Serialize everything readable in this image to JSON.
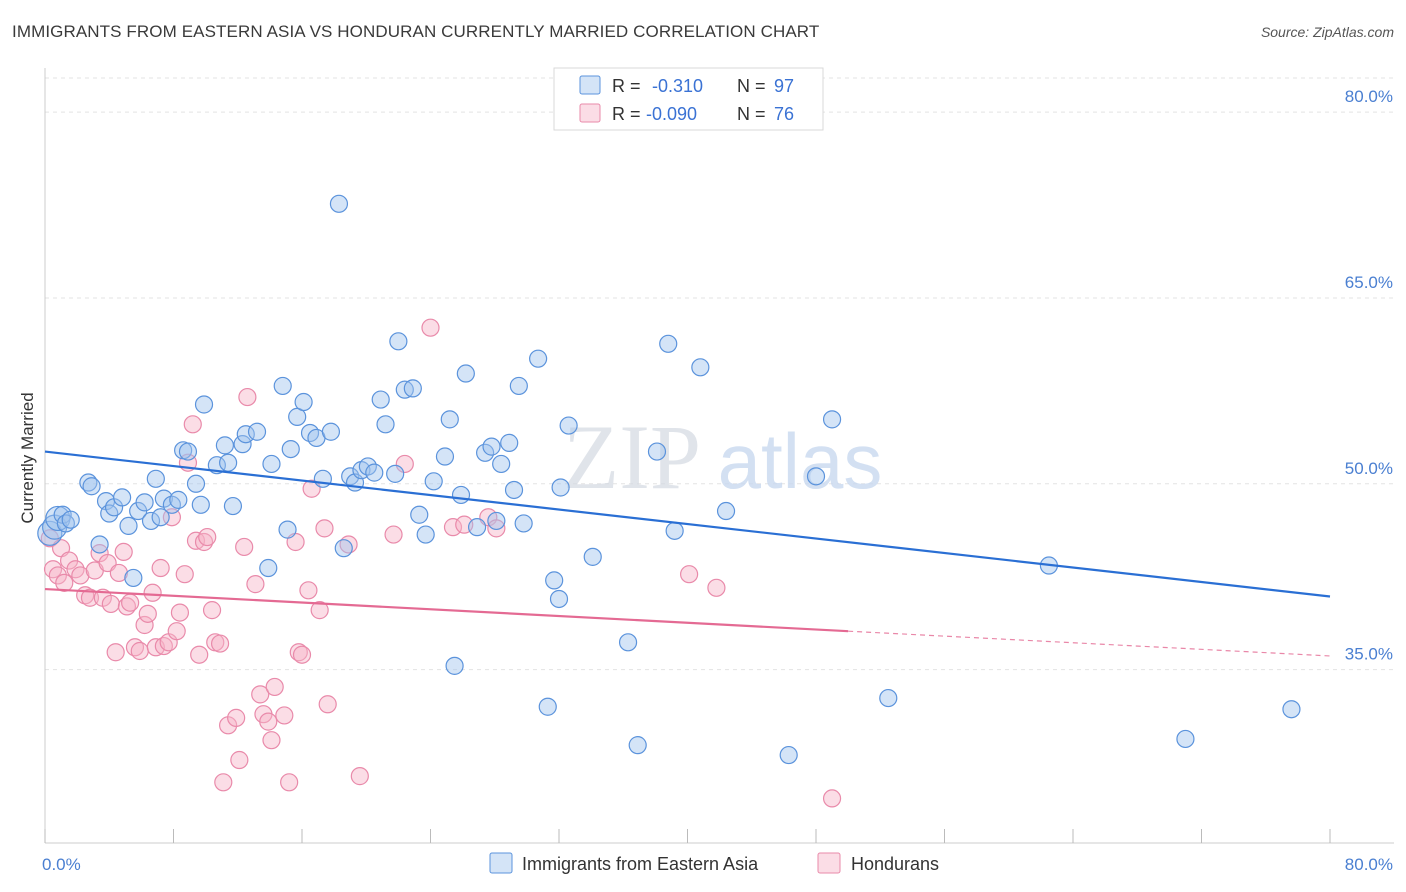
{
  "title": "IMMIGRANTS FROM EASTERN ASIA VS HONDURAN CURRENTLY MARRIED CORRELATION CHART",
  "source": "Source: ZipAtlas.com",
  "watermark": {
    "zip": "ZIP",
    "atlas": "atlas"
  },
  "colors": {
    "blue": "#5b93dc",
    "blue_fill": "rgba(160,195,238,0.45)",
    "blue_line": "#2a6fd4",
    "pink": "#e98aaa",
    "pink_fill": "rgba(246,180,200,0.45)",
    "pink_line": "#e46a93"
  },
  "legend": {
    "rows": [
      {
        "r_label": "R =",
        "r_value": "-0.310",
        "n_label": "N =",
        "n_value": "97"
      },
      {
        "r_label": "R =",
        "r_value": "-0.090",
        "n_label": "N =",
        "n_value": "76"
      }
    ]
  },
  "bottom_legend": [
    "Immigrants from Eastern Asia",
    "Hondurans"
  ],
  "chart_data": {
    "type": "scatter",
    "title": "IMMIGRANTS FROM EASTERN ASIA VS HONDURAN CURRENTLY MARRIED CORRELATION CHART",
    "xlabel": "",
    "ylabel": "Currently Married",
    "xlim": [
      0,
      80
    ],
    "ylim": [
      21,
      83
    ],
    "x_tick_labels": [
      "0.0%",
      "80.0%"
    ],
    "y_ticks": [
      35,
      50,
      65,
      80
    ],
    "y_tick_labels": [
      "35.0%",
      "50.0%",
      "65.0%",
      "80.0%"
    ],
    "grid": true,
    "legend_position": "top-center",
    "series": [
      {
        "name": "Immigrants from Eastern Asia",
        "trend": {
          "x": [
            0,
            80
          ],
          "y": [
            52.6,
            40.9
          ],
          "dashed_after": null
        },
        "points": [
          [
            0.3,
            46.0
          ],
          [
            0.6,
            46.5
          ],
          [
            0.8,
            47.2
          ],
          [
            1.1,
            47.5
          ],
          [
            1.3,
            46.8
          ],
          [
            1.6,
            47.1
          ],
          [
            2.7,
            50.1
          ],
          [
            2.9,
            49.8
          ],
          [
            3.4,
            45.1
          ],
          [
            3.8,
            48.6
          ],
          [
            4.0,
            47.6
          ],
          [
            4.3,
            48.1
          ],
          [
            4.8,
            48.9
          ],
          [
            5.2,
            46.6
          ],
          [
            5.5,
            42.4
          ],
          [
            5.8,
            47.8
          ],
          [
            6.2,
            48.5
          ],
          [
            6.6,
            47.0
          ],
          [
            6.9,
            50.4
          ],
          [
            7.2,
            47.3
          ],
          [
            7.4,
            48.8
          ],
          [
            7.9,
            48.3
          ],
          [
            8.3,
            48.7
          ],
          [
            8.6,
            52.7
          ],
          [
            8.9,
            52.6
          ],
          [
            9.4,
            50.0
          ],
          [
            9.7,
            48.3
          ],
          [
            9.9,
            56.4
          ],
          [
            10.7,
            51.5
          ],
          [
            11.2,
            53.1
          ],
          [
            11.4,
            51.7
          ],
          [
            11.7,
            48.2
          ],
          [
            12.3,
            53.2
          ],
          [
            12.5,
            54.0
          ],
          [
            13.2,
            54.2
          ],
          [
            13.9,
            43.2
          ],
          [
            14.1,
            51.6
          ],
          [
            14.8,
            57.9
          ],
          [
            15.1,
            46.3
          ],
          [
            15.3,
            52.8
          ],
          [
            15.7,
            55.4
          ],
          [
            16.1,
            56.6
          ],
          [
            16.5,
            54.1
          ],
          [
            16.9,
            53.7
          ],
          [
            17.3,
            50.4
          ],
          [
            17.8,
            54.2
          ],
          [
            18.3,
            72.6
          ],
          [
            18.6,
            44.8
          ],
          [
            19.0,
            50.6
          ],
          [
            19.3,
            50.1
          ],
          [
            19.7,
            51.1
          ],
          [
            20.1,
            51.4
          ],
          [
            20.5,
            50.9
          ],
          [
            20.9,
            56.8
          ],
          [
            21.2,
            54.8
          ],
          [
            21.8,
            50.8
          ],
          [
            22.0,
            61.5
          ],
          [
            22.4,
            57.6
          ],
          [
            22.9,
            57.7
          ],
          [
            23.3,
            47.5
          ],
          [
            23.7,
            45.9
          ],
          [
            24.2,
            50.2
          ],
          [
            24.9,
            52.2
          ],
          [
            25.2,
            55.2
          ],
          [
            25.5,
            35.3
          ],
          [
            25.9,
            49.1
          ],
          [
            26.2,
            58.9
          ],
          [
            26.9,
            46.5
          ],
          [
            27.4,
            52.5
          ],
          [
            27.8,
            53.0
          ],
          [
            28.1,
            47.0
          ],
          [
            28.4,
            51.6
          ],
          [
            28.9,
            53.3
          ],
          [
            29.2,
            49.5
          ],
          [
            29.5,
            57.9
          ],
          [
            29.8,
            46.8
          ],
          [
            30.7,
            60.1
          ],
          [
            31.3,
            32.0
          ],
          [
            31.7,
            42.2
          ],
          [
            32.0,
            40.7
          ],
          [
            32.1,
            49.7
          ],
          [
            32.6,
            54.7
          ],
          [
            34.1,
            44.1
          ],
          [
            36.3,
            37.2
          ],
          [
            36.9,
            28.9
          ],
          [
            38.1,
            52.6
          ],
          [
            38.8,
            61.3
          ],
          [
            39.2,
            46.2
          ],
          [
            40.8,
            59.4
          ],
          [
            42.4,
            47.8
          ],
          [
            46.3,
            28.1
          ],
          [
            48.0,
            50.6
          ],
          [
            49.0,
            55.2
          ],
          [
            52.5,
            32.7
          ],
          [
            62.5,
            43.4
          ],
          [
            71.0,
            29.4
          ],
          [
            77.6,
            31.8
          ]
        ]
      },
      {
        "name": "Hondurans",
        "trend": {
          "x": [
            0,
            50,
            80
          ],
          "y": [
            41.5,
            38.1,
            36.1
          ],
          "dashed_after": 50
        },
        "points": [
          [
            0.3,
            45.6
          ],
          [
            0.5,
            43.1
          ],
          [
            0.8,
            42.6
          ],
          [
            1.0,
            44.8
          ],
          [
            1.2,
            42.0
          ],
          [
            1.5,
            43.8
          ],
          [
            1.9,
            43.1
          ],
          [
            2.2,
            42.6
          ],
          [
            2.5,
            41.0
          ],
          [
            2.8,
            40.8
          ],
          [
            3.1,
            43.0
          ],
          [
            3.4,
            44.4
          ],
          [
            3.6,
            40.8
          ],
          [
            3.9,
            43.6
          ],
          [
            4.1,
            40.3
          ],
          [
            4.4,
            36.4
          ],
          [
            4.6,
            42.8
          ],
          [
            4.9,
            44.5
          ],
          [
            5.1,
            40.1
          ],
          [
            5.3,
            40.4
          ],
          [
            5.6,
            36.8
          ],
          [
            5.9,
            36.5
          ],
          [
            6.2,
            38.6
          ],
          [
            6.4,
            39.5
          ],
          [
            6.7,
            41.2
          ],
          [
            6.9,
            36.8
          ],
          [
            7.2,
            43.2
          ],
          [
            7.4,
            36.9
          ],
          [
            7.7,
            37.2
          ],
          [
            7.9,
            47.3
          ],
          [
            8.2,
            38.1
          ],
          [
            8.4,
            39.6
          ],
          [
            8.7,
            42.7
          ],
          [
            8.9,
            51.7
          ],
          [
            9.2,
            54.8
          ],
          [
            9.4,
            45.4
          ],
          [
            9.6,
            36.2
          ],
          [
            9.9,
            45.3
          ],
          [
            10.1,
            45.7
          ],
          [
            10.4,
            39.8
          ],
          [
            10.6,
            37.2
          ],
          [
            10.9,
            37.1
          ],
          [
            11.1,
            25.9
          ],
          [
            11.4,
            30.5
          ],
          [
            11.9,
            31.1
          ],
          [
            12.1,
            27.7
          ],
          [
            12.4,
            44.9
          ],
          [
            12.6,
            57.0
          ],
          [
            13.1,
            41.9
          ],
          [
            13.4,
            33.0
          ],
          [
            13.6,
            31.4
          ],
          [
            13.9,
            30.8
          ],
          [
            14.1,
            29.3
          ],
          [
            14.3,
            33.6
          ],
          [
            14.9,
            31.3
          ],
          [
            15.2,
            25.9
          ],
          [
            15.6,
            45.3
          ],
          [
            15.8,
            36.4
          ],
          [
            16.0,
            36.2
          ],
          [
            16.4,
            41.4
          ],
          [
            16.6,
            49.6
          ],
          [
            17.1,
            39.8
          ],
          [
            17.4,
            46.4
          ],
          [
            17.6,
            32.2
          ],
          [
            18.9,
            45.1
          ],
          [
            19.6,
            26.4
          ],
          [
            21.7,
            45.9
          ],
          [
            22.4,
            51.6
          ],
          [
            24.0,
            62.6
          ],
          [
            25.4,
            46.5
          ],
          [
            26.1,
            46.7
          ],
          [
            27.6,
            47.3
          ],
          [
            28.1,
            46.4
          ],
          [
            40.1,
            42.7
          ],
          [
            41.8,
            41.6
          ],
          [
            49.0,
            24.6
          ]
        ]
      }
    ]
  }
}
